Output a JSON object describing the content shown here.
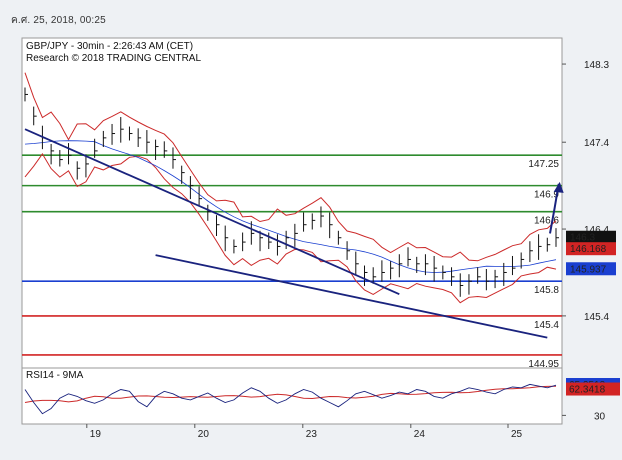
{
  "timestamp": "ค.ศ. 25, 2018, 00:25",
  "chart_data": [
    {
      "type": "line",
      "title": "GBP/JPY - 30min - 2:26:43 AM (CET)",
      "subtitle": "Research © 2018 TRADING CENTRAL",
      "x_tick_labels": [
        "19",
        "20",
        "23",
        "24",
        "25"
      ],
      "y_tick_labels": [
        "148.3",
        "147.4",
        "146.4",
        "145.4"
      ],
      "ylim": [
        144.8,
        148.6
      ],
      "levels": [
        {
          "value": 147.25,
          "label": "147.25",
          "color": "#2e8b2e"
        },
        {
          "value": 146.9,
          "label": "146.9",
          "color": "#2e8b2e"
        },
        {
          "value": 146.6,
          "label": "146.6",
          "color": "#2e8b2e"
        },
        {
          "value": 145.8,
          "label": "145.8",
          "color": "#1a3fd0"
        },
        {
          "value": 145.4,
          "label": "145.4",
          "color": "#d22424"
        },
        {
          "value": 144.95,
          "label": "144.95",
          "color": "#d22424"
        }
      ],
      "price_tags": [
        {
          "value": 146.3,
          "label": "146.3",
          "bg": "#111111"
        },
        {
          "value": 146.168,
          "label": "146.168",
          "bg": "#d22424"
        },
        {
          "value": 145.937,
          "label": "145.937",
          "bg": "#1a3fd0"
        }
      ],
      "close_series": [
        147.95,
        147.7,
        147.45,
        147.3,
        147.2,
        147.25,
        147.1,
        147.15,
        147.3,
        147.45,
        147.5,
        147.55,
        147.5,
        147.45,
        147.4,
        147.35,
        147.3,
        147.2,
        147.05,
        146.9,
        146.75,
        146.6,
        146.45,
        146.3,
        146.2,
        146.25,
        146.35,
        146.3,
        146.25,
        146.2,
        146.3,
        146.35,
        146.45,
        146.5,
        146.55,
        146.45,
        146.3,
        146.15,
        146.0,
        145.9,
        145.85,
        145.9,
        145.95,
        146.0,
        146.05,
        146.0,
        146.0,
        145.95,
        145.9,
        145.85,
        145.75,
        145.8,
        145.85,
        145.8,
        145.85,
        145.9,
        145.95,
        146.05,
        146.15,
        146.2,
        146.22,
        146.3
      ],
      "channel": {
        "upper": [
          [
            0,
            147.55
          ],
          [
            43,
            145.65
          ]
        ],
        "lower": [
          [
            15,
            146.1
          ],
          [
            60,
            145.15
          ]
        ]
      },
      "arrow": {
        "from": [
          61,
          146.35
        ],
        "to": [
          62,
          146.92
        ],
        "color": "#1a237e"
      }
    },
    {
      "type": "line",
      "title": "RSI14 - 9MA",
      "y_tick_labels": [
        "30"
      ],
      "ylim": [
        20,
        85
      ],
      "value_tags": [
        {
          "value": 65.2513,
          "label": "65.2513",
          "bg": "#1a3fd0"
        },
        {
          "value": 62.3418,
          "label": "62.3418",
          "bg": "#d22424"
        }
      ],
      "rsi_series": [
        60,
        45,
        32,
        38,
        50,
        55,
        52,
        47,
        44,
        48,
        55,
        60,
        58,
        46,
        40,
        52,
        58,
        55,
        50,
        48,
        52,
        56,
        50,
        45,
        48,
        56,
        62,
        58,
        50,
        44,
        48,
        55,
        60,
        57,
        50,
        45,
        40,
        47,
        55,
        58,
        54,
        50,
        53,
        57,
        55,
        60,
        58,
        52,
        50,
        55,
        58,
        62,
        60,
        57,
        55,
        60,
        63,
        62,
        66,
        64,
        62,
        65
      ]
    }
  ]
}
